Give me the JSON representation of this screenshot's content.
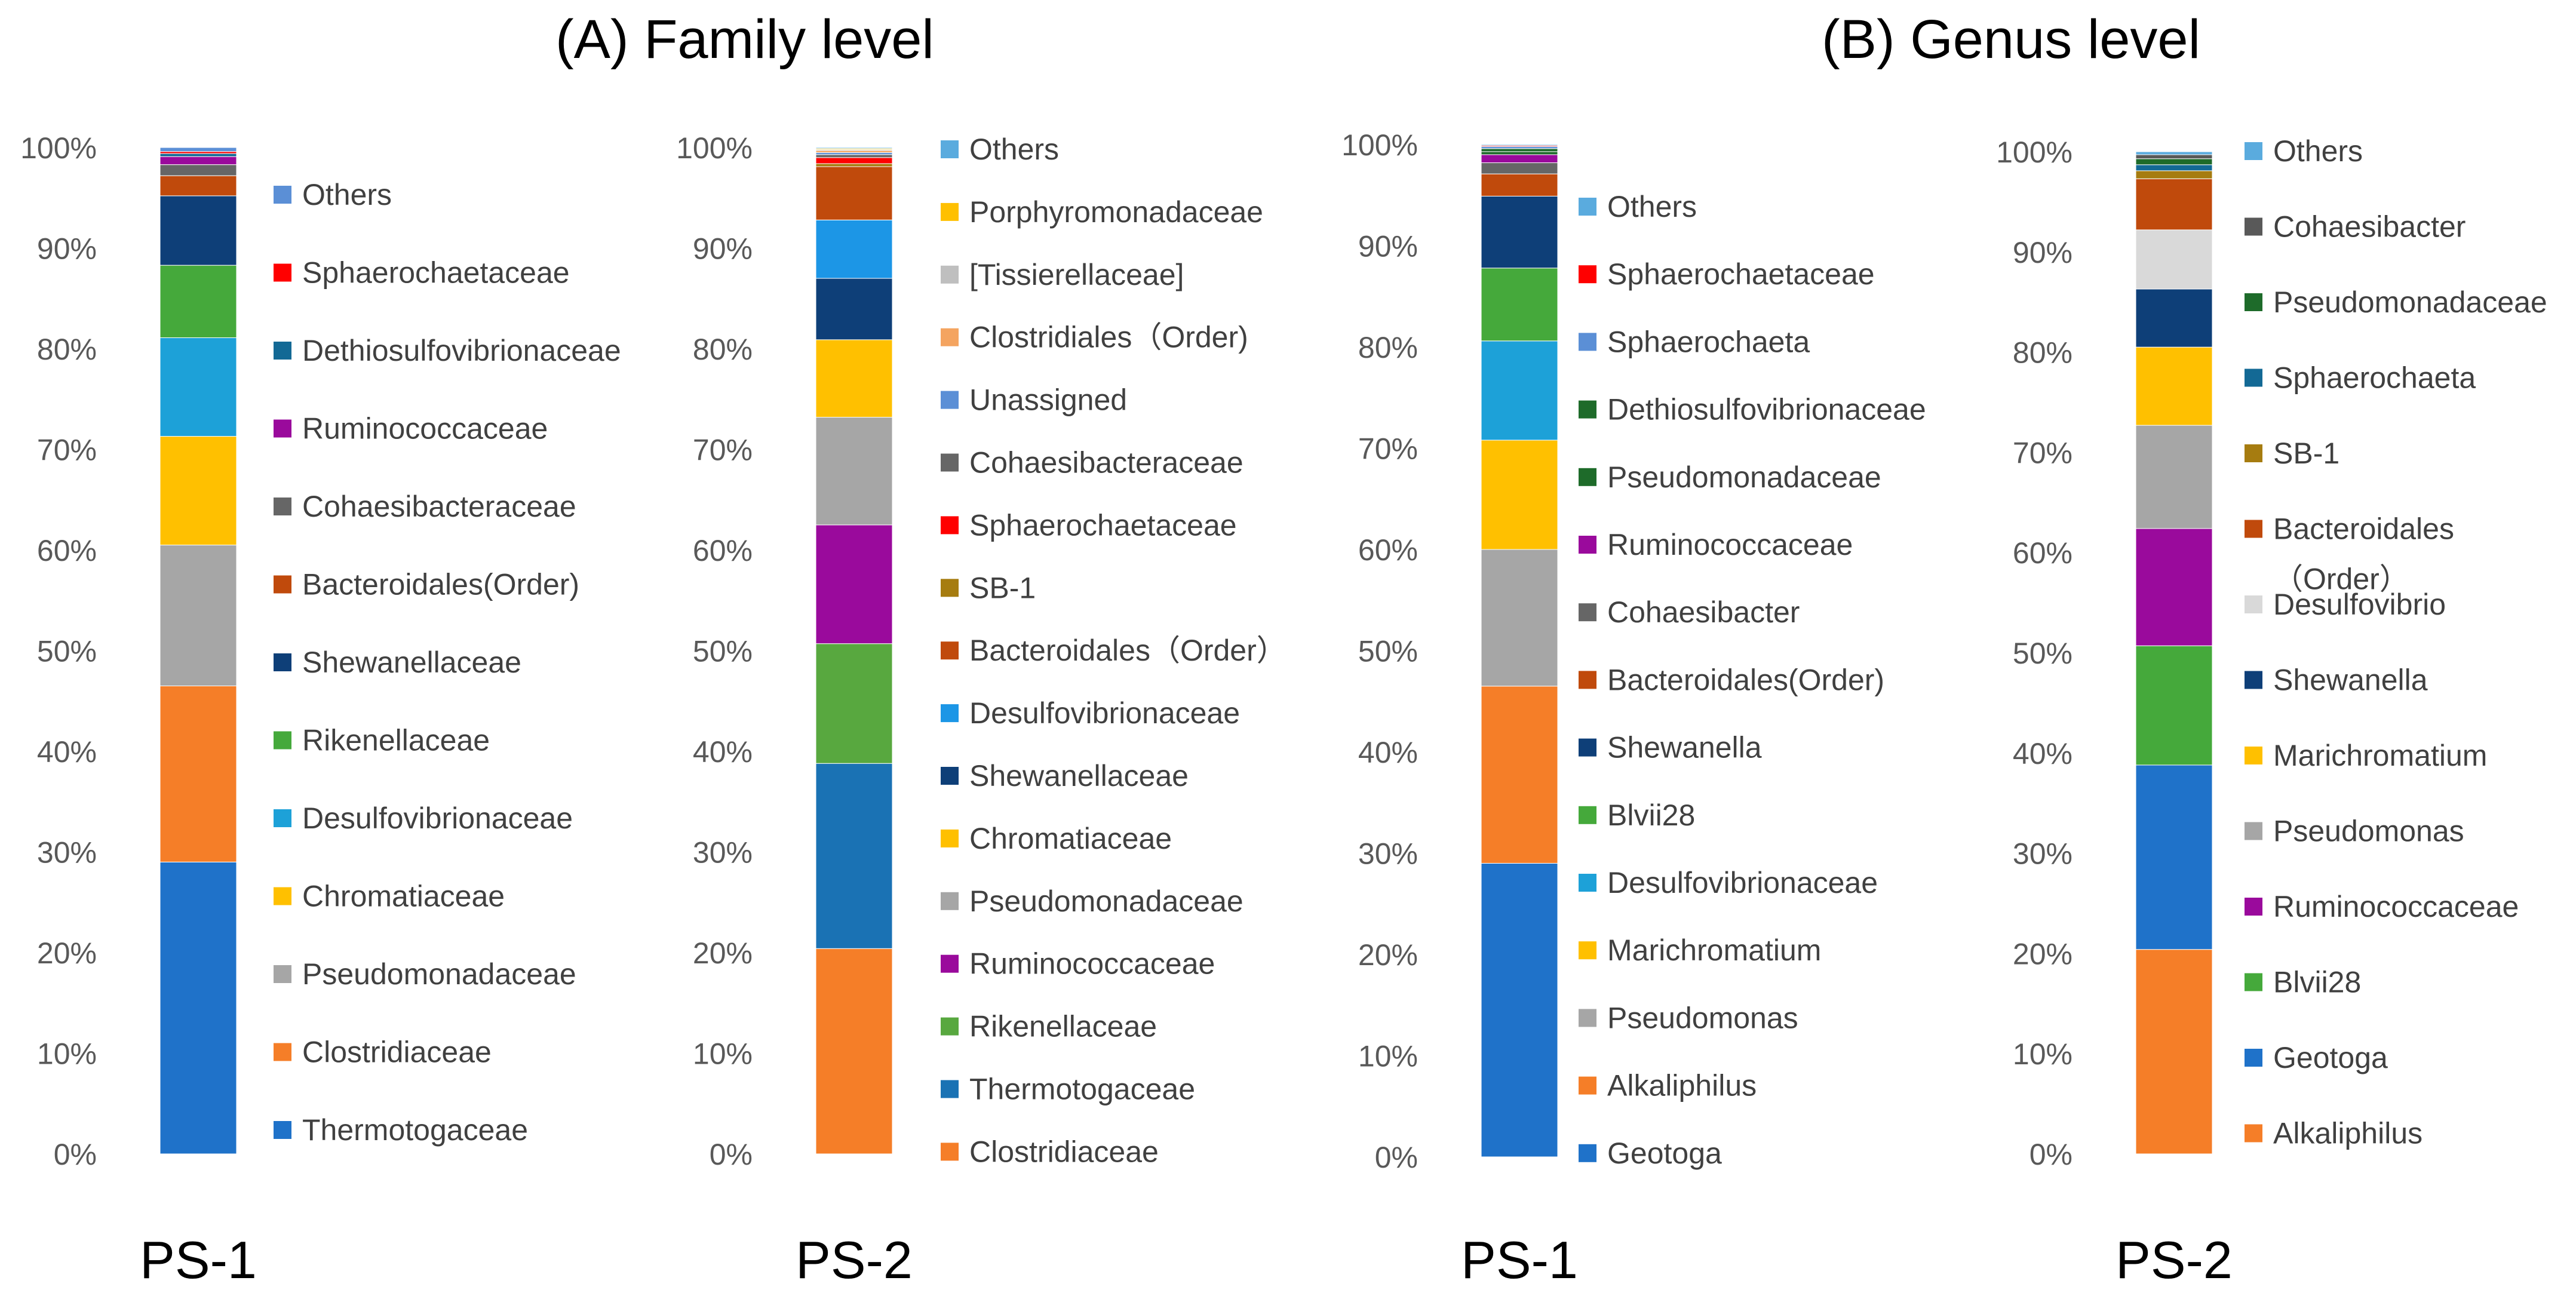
{
  "titles": {
    "family": "(A) Family level",
    "genus": "(B) Genus level"
  },
  "chart_data": [
    {
      "type": "bar",
      "stacked": true,
      "category": "PS-1",
      "group": "(A) Family level",
      "ylim": [
        0,
        100
      ],
      "ytick_labels": [
        "0%",
        "10%",
        "20%",
        "30%",
        "40%",
        "50%",
        "60%",
        "70%",
        "80%",
        "90%",
        "100%"
      ],
      "segments": [
        {
          "name": "Thermotogaceae",
          "value": 29.0,
          "color": "#1f72c9"
        },
        {
          "name": "Clostridiaceae",
          "value": 17.5,
          "color": "#f57e28"
        },
        {
          "name": "Pseudomonadaceae",
          "value": 14.0,
          "color": "#a6a6a6"
        },
        {
          "name": "Chromatiaceae",
          "value": 10.8,
          "color": "#ffc000"
        },
        {
          "name": "Desulfovibrionaceae",
          "value": 9.8,
          "color": "#1da1d8"
        },
        {
          "name": "Rikenellaceae",
          "value": 7.2,
          "color": "#45a93b"
        },
        {
          "name": "Shewanellaceae",
          "value": 6.9,
          "color": "#0e3f78"
        },
        {
          "name": "Bacteroidales(Order)",
          "value": 2.0,
          "color": "#c04a0c"
        },
        {
          "name": "Cohaesibacteraceae",
          "value": 1.1,
          "color": "#666666"
        },
        {
          "name": "Ruminococcaceae",
          "value": 0.8,
          "color": "#9a0a9c"
        },
        {
          "name": "Dethiosulfovibrionaceae",
          "value": 0.3,
          "color": "#136995"
        },
        {
          "name": "Sphaerochaetaceae",
          "value": 0.2,
          "color": "#ff0000"
        },
        {
          "name": "Others",
          "value": 0.4,
          "color": "#5b8fd6"
        }
      ],
      "legend_order_top_to_bottom": [
        "Others",
        "Sphaerochaetaceae",
        "Dethiosulfovibrionaceae",
        "Ruminococcaceae",
        "Cohaesibacteraceae",
        "Bacteroidales(Order)",
        "Shewanellaceae",
        "Rikenellaceae",
        "Desulfovibrionaceae",
        "Chromatiaceae",
        "Pseudomonadaceae",
        "Clostridiaceae",
        "Thermotogaceae"
      ]
    },
    {
      "type": "bar",
      "stacked": true,
      "category": "PS-2",
      "group": "(A) Family level",
      "ylim": [
        0,
        100
      ],
      "ytick_labels": [
        "0%",
        "10%",
        "20%",
        "30%",
        "40%",
        "50%",
        "60%",
        "70%",
        "80%",
        "90%",
        "100%"
      ],
      "segments": [
        {
          "name": "Clostridiaceae",
          "value": 20.4,
          "color": "#f57e28"
        },
        {
          "name": "Thermotogaceae",
          "value": 18.4,
          "color": "#1a72b4"
        },
        {
          "name": "Rikenellaceae",
          "value": 11.9,
          "color": "#58a83f"
        },
        {
          "name": "Ruminococcaceae",
          "value": 11.8,
          "color": "#9a0a9c"
        },
        {
          "name": "Pseudomonadaceae",
          "value": 10.7,
          "color": "#a6a6a6"
        },
        {
          "name": "Chromatiaceae",
          "value": 7.7,
          "color": "#ffc000"
        },
        {
          "name": "Shewanellaceae",
          "value": 6.1,
          "color": "#0e3f78"
        },
        {
          "name": "Desulfovibrionaceae",
          "value": 5.8,
          "color": "#1c96e6"
        },
        {
          "name": "Bacteroidales（Order）",
          "value": 5.3,
          "color": "#c04a0c"
        },
        {
          "name": "SB-1",
          "value": 0.3,
          "color": "#a67c10"
        },
        {
          "name": "Sphaerochaetaceae",
          "value": 0.6,
          "color": "#ff0000"
        },
        {
          "name": "Cohaesibacteraceae",
          "value": 0.3,
          "color": "#666666"
        },
        {
          "name": "Unassigned",
          "value": 0.2,
          "color": "#5b8fd6"
        },
        {
          "name": "Clostridiales（Order)",
          "value": 0.2,
          "color": "#f4a460"
        },
        {
          "name": "[Tissierellaceae]",
          "value": 0.1,
          "color": "#bfbfbf"
        },
        {
          "name": "Porphyromonadaceae",
          "value": 0.1,
          "color": "#ffc000"
        },
        {
          "name": "Others",
          "value": 0.1,
          "color": "#5aabde"
        }
      ],
      "legend_order_top_to_bottom": [
        "Others",
        "Porphyromonadaceae",
        "[Tissierellaceae]",
        "Clostridiales（Order)",
        "Unassigned",
        "Cohaesibacteraceae",
        "Sphaerochaetaceae",
        "SB-1",
        "Bacteroidales（Order）",
        "Desulfovibrionaceae",
        "Shewanellaceae",
        "Chromatiaceae",
        "Pseudomonadaceae",
        "Ruminococcaceae",
        "Rikenellaceae",
        "Thermotogaceae",
        "Clostridiaceae"
      ]
    },
    {
      "type": "bar",
      "stacked": true,
      "category": "PS-1",
      "group": "(B) Genus level",
      "ylim": [
        0,
        100
      ],
      "ytick_labels": [
        "0%",
        "10%",
        "20%",
        "30%",
        "40%",
        "50%",
        "60%",
        "70%",
        "80%",
        "90%",
        "100%"
      ],
      "segments": [
        {
          "name": "Geotoga",
          "value": 29.0,
          "color": "#1f72c9"
        },
        {
          "name": "Alkaliphilus",
          "value": 17.5,
          "color": "#f57e28"
        },
        {
          "name": "Pseudomonas",
          "value": 13.5,
          "color": "#a6a6a6"
        },
        {
          "name": "Marichromatium",
          "value": 10.8,
          "color": "#ffc000"
        },
        {
          "name": "Desulfovibrionaceae",
          "value": 9.8,
          "color": "#1da1d8"
        },
        {
          "name": "Blvii28",
          "value": 7.2,
          "color": "#45a93b"
        },
        {
          "name": "Shewanella",
          "value": 7.1,
          "color": "#0e3f78"
        },
        {
          "name": "Bacteroidales(Order)",
          "value": 2.2,
          "color": "#c04a0c"
        },
        {
          "name": "Cohaesibacter",
          "value": 1.1,
          "color": "#666666"
        },
        {
          "name": "Ruminococcaceae",
          "value": 0.8,
          "color": "#9a0a9c"
        },
        {
          "name": "Pseudomonadaceae",
          "value": 0.3,
          "color": "#1e6b2a"
        },
        {
          "name": "Dethiosulfovibrionaceae",
          "value": 0.3,
          "color": "#1e6b2a"
        },
        {
          "name": "Sphaerochaeta",
          "value": 0.2,
          "color": "#5b8fd6"
        },
        {
          "name": "Sphaerochaetaceae",
          "value": 0.1,
          "color": "#ff0000"
        },
        {
          "name": "Others",
          "value": 0.1,
          "color": "#5aabde"
        }
      ],
      "legend_order_top_to_bottom": [
        "Others",
        "Sphaerochaetaceae",
        "Sphaerochaeta",
        "Dethiosulfovibrionaceae",
        "Pseudomonadaceae",
        "Ruminococcaceae",
        "Cohaesibacter",
        "Bacteroidales(Order)",
        "Shewanella",
        "Blvii28",
        "Desulfovibrionaceae",
        "Marichromatium",
        "Pseudomonas",
        "Alkaliphilus",
        "Geotoga"
      ]
    },
    {
      "type": "bar",
      "stacked": true,
      "category": "PS-2",
      "group": "(B) Genus level",
      "ylim": [
        0,
        100
      ],
      "ytick_labels": [
        "0%",
        "10%",
        "20%",
        "30%",
        "40%",
        "50%",
        "60%",
        "70%",
        "80%",
        "90%",
        "100%"
      ],
      "segments": [
        {
          "name": "Alkaliphilus",
          "value": 20.4,
          "color": "#f57e28"
        },
        {
          "name": "Geotoga",
          "value": 18.4,
          "color": "#1f72c9"
        },
        {
          "name": "Blvii28",
          "value": 11.9,
          "color": "#45a93b"
        },
        {
          "name": "Ruminococcaceae",
          "value": 11.7,
          "color": "#9a0a9c"
        },
        {
          "name": "Pseudomonas",
          "value": 10.3,
          "color": "#a6a6a6"
        },
        {
          "name": "Marichromatium",
          "value": 7.8,
          "color": "#ffc000"
        },
        {
          "name": "Shewanella",
          "value": 5.8,
          "color": "#0e3f78"
        },
        {
          "name": "Desulfovibrio",
          "value": 5.9,
          "color": "#d9d9d9"
        },
        {
          "name": "Bacteroidales\n（Order）",
          "value": 5.1,
          "color": "#c04a0c"
        },
        {
          "name": "SB-1",
          "value": 0.8,
          "color": "#a67c10"
        },
        {
          "name": "Sphaerochaeta",
          "value": 0.6,
          "color": "#136995"
        },
        {
          "name": "Pseudomonadaceae",
          "value": 0.6,
          "color": "#1e6b2a"
        },
        {
          "name": "Cohaesibacter",
          "value": 0.4,
          "color": "#595959"
        },
        {
          "name": "Others",
          "value": 0.3,
          "color": "#5aabde"
        }
      ],
      "legend_order_top_to_bottom": [
        "Others",
        "Cohaesibacter",
        "Pseudomonadaceae",
        "Sphaerochaeta",
        "SB-1",
        "Bacteroidales\n（Order）",
        "Desulfovibrio",
        "Shewanella",
        "Marichromatium",
        "Pseudomonas",
        "Ruminococcaceae",
        "Blvii28",
        "Geotoga",
        "Alkaliphilus"
      ]
    }
  ]
}
